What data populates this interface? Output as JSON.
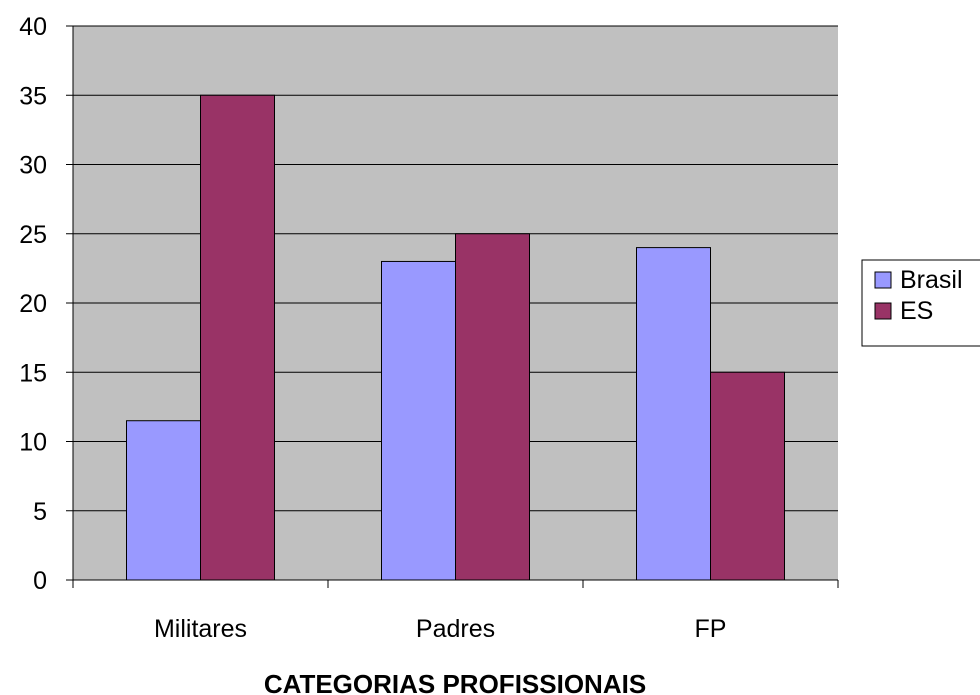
{
  "chart_data": {
    "type": "bar",
    "title": "",
    "xlabel": "CATEGORIAS PROFISSIONAIS",
    "ylabel": "",
    "categories": [
      "Militares",
      "Padres",
      "FP"
    ],
    "series": [
      {
        "name": "Brasil",
        "values": [
          11.5,
          23,
          24
        ],
        "color": "#9999ff"
      },
      {
        "name": "ES",
        "values": [
          35,
          25,
          15
        ],
        "color": "#993366"
      }
    ],
    "ylim": [
      0,
      40
    ],
    "yticks": [
      0,
      5,
      10,
      15,
      20,
      25,
      30,
      35,
      40
    ],
    "grid": true,
    "plot_background": "#c0c0c0",
    "legend_position": "right"
  }
}
